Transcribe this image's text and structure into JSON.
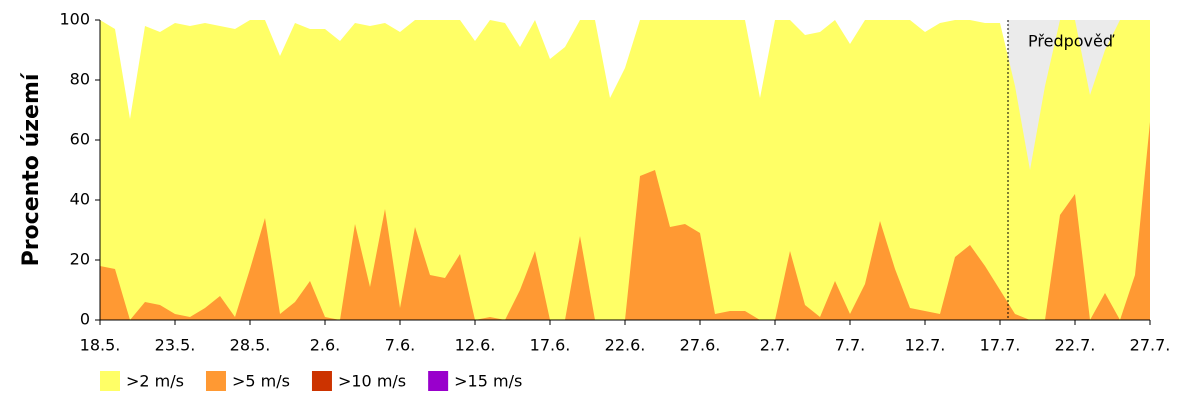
{
  "chart_data": {
    "type": "area",
    "y_label": "Procento území",
    "annotation": "Předpověď",
    "categories": [
      "18.5.",
      null,
      null,
      null,
      null,
      "23.5.",
      null,
      null,
      null,
      null,
      "28.5.",
      null,
      null,
      null,
      null,
      "2.6.",
      null,
      null,
      null,
      null,
      "7.6.",
      null,
      null,
      null,
      null,
      "12.6.",
      null,
      null,
      null,
      null,
      "17.6.",
      null,
      null,
      null,
      null,
      "22.6.",
      null,
      null,
      null,
      null,
      "27.6.",
      null,
      null,
      null,
      null,
      "2.7.",
      null,
      null,
      null,
      null,
      "7.7.",
      null,
      null,
      null,
      null,
      "12.7.",
      null,
      null,
      null,
      null,
      "17.7.",
      null,
      null,
      null,
      null,
      "22.7.",
      null,
      null,
      null,
      null,
      "27.7."
    ],
    "series": [
      {
        "name": ">2 m/s",
        "color": "#ffff66",
        "values": [
          100,
          97,
          67,
          98,
          96,
          99,
          98,
          99,
          98,
          97,
          100,
          100,
          88,
          99,
          97,
          97,
          93,
          99,
          98,
          99,
          96,
          100,
          100,
          100,
          100,
          93,
          100,
          99,
          91,
          100,
          87,
          91,
          100,
          100,
          74,
          84,
          100,
          100,
          100,
          100,
          100,
          100,
          100,
          100,
          74,
          100,
          100,
          95,
          96,
          100,
          92,
          100,
          100,
          100,
          100,
          96,
          99,
          100,
          100,
          99,
          99,
          78,
          50,
          78,
          100,
          100,
          75,
          90,
          100,
          100,
          100
        ]
      },
      {
        "name": ">5 m/s",
        "color": "#ff9933",
        "values": [
          18,
          17,
          0,
          6,
          5,
          2,
          1,
          4,
          8,
          1,
          17,
          34,
          2,
          6,
          13,
          1,
          0,
          32,
          11,
          37,
          4,
          31,
          15,
          14,
          22,
          0,
          1,
          0,
          10,
          23,
          0,
          0,
          28,
          0,
          0,
          0,
          48,
          50,
          31,
          32,
          29,
          2,
          3,
          3,
          0,
          0,
          23,
          5,
          1,
          13,
          2,
          12,
          33,
          17,
          4,
          3,
          2,
          21,
          25,
          18,
          10,
          2,
          0,
          0,
          35,
          42,
          0,
          9,
          0,
          15,
          66
        ]
      },
      {
        "name": ">10 m/s",
        "color": "#cc3300",
        "values": [
          0,
          0,
          0,
          0,
          0,
          0,
          0,
          0,
          0,
          0,
          0,
          0,
          0,
          0,
          0,
          0,
          0,
          0,
          0,
          0,
          0,
          0,
          0,
          0,
          0,
          0,
          0,
          0,
          0,
          0,
          0,
          0,
          0,
          0,
          0,
          0,
          0,
          0,
          0,
          0,
          0,
          0,
          0,
          0,
          0,
          0,
          0,
          0,
          0,
          0,
          0,
          0,
          0,
          0,
          0,
          0,
          0,
          0,
          0,
          0,
          0,
          0,
          0,
          0,
          0,
          0,
          0,
          0,
          0,
          0,
          0
        ]
      },
      {
        "name": ">15 m/s",
        "color": "#9900cc",
        "values": [
          0,
          0,
          0,
          0,
          0,
          0,
          0,
          0,
          0,
          0,
          0,
          0,
          0,
          0,
          0,
          0,
          0,
          0,
          0,
          0,
          0,
          0,
          0,
          0,
          0,
          0,
          0,
          0,
          0,
          0,
          0,
          0,
          0,
          0,
          0,
          0,
          0,
          0,
          0,
          0,
          0,
          0,
          0,
          0,
          0,
          0,
          0,
          0,
          0,
          0,
          0,
          0,
          0,
          0,
          0,
          0,
          0,
          0,
          0,
          0,
          0,
          0,
          0,
          0,
          0,
          0,
          0,
          0,
          0,
          0,
          0
        ]
      }
    ],
    "ylim": [
      0,
      100
    ],
    "yticks": [
      0,
      20,
      40,
      60,
      80,
      100
    ]
  }
}
